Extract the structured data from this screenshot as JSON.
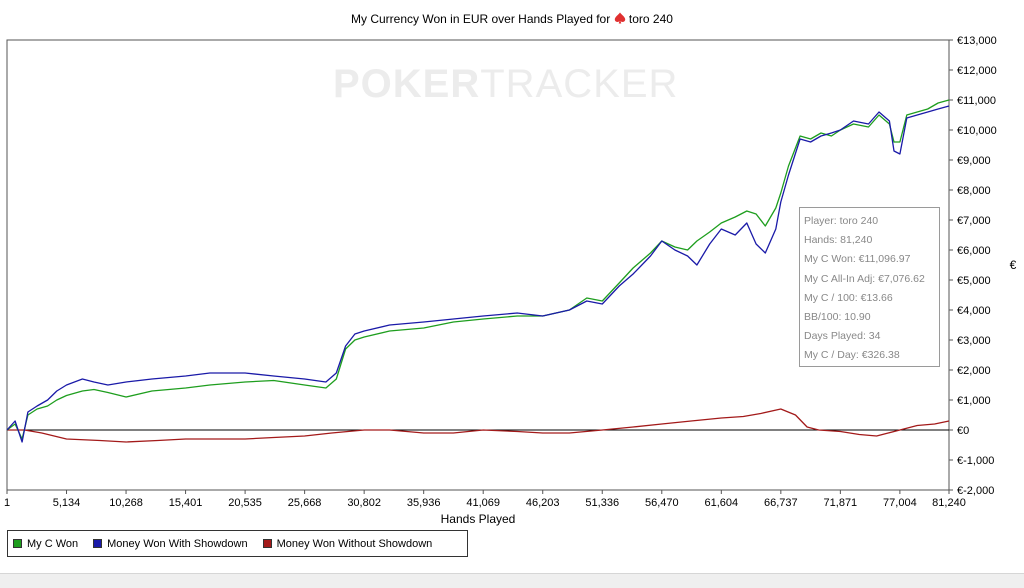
{
  "title": {
    "prefix": "My Currency Won in EUR over Hands Played for",
    "player": "toro 240"
  },
  "watermark": {
    "part1": "POKER",
    "part2": "TRACKER"
  },
  "colors": {
    "green": "#1e9e1e",
    "blue": "#1a1aa8",
    "red": "#a31a1a",
    "spade": "#e03030"
  },
  "tooltip": {
    "player": "Player: toro 240",
    "hands": "Hands: 81,240",
    "won": "My C Won: €11,096.97",
    "allin": "My C All-In Adj: €7,076.62",
    "per100": "My C / 100: €13.66",
    "bb100": "BB/100: 10.90",
    "days": "Days Played: 34",
    "perday": "My C / Day: €326.38"
  },
  "legend": {
    "items": [
      {
        "label": "My C Won",
        "color": "#1e9e1e"
      },
      {
        "label": "Money Won With Showdown",
        "color": "#1a1aa8"
      },
      {
        "label": "Money Won Without Showdown",
        "color": "#a31a1a"
      }
    ]
  },
  "chart_data": {
    "type": "line",
    "title": "My Currency Won in EUR over Hands Played for toro 240",
    "xlabel": "Hands Played",
    "ylabel": "€",
    "xlim": [
      1,
      81240
    ],
    "ylim": [
      -2000,
      13000
    ],
    "x_ticks": [
      1,
      5134,
      10268,
      15401,
      20535,
      25668,
      30802,
      35936,
      41069,
      46203,
      51336,
      56470,
      61604,
      66737,
      71871,
      77004,
      81240
    ],
    "x_tick_labels": [
      "1",
      "5,134",
      "10,268",
      "15,401",
      "20,535",
      "25,668",
      "30,802",
      "35,936",
      "41,069",
      "46,203",
      "51,336",
      "56,470",
      "61,604",
      "66,737",
      "71,871",
      "77,004",
      "81,240"
    ],
    "y_ticks": [
      -2000,
      -1000,
      0,
      1000,
      2000,
      3000,
      4000,
      5000,
      6000,
      7000,
      8000,
      9000,
      10000,
      11000,
      12000,
      13000
    ],
    "y_tick_labels": [
      "€-2,000",
      "€-1,000",
      "€0",
      "€1,000",
      "€2,000",
      "€3,000",
      "€4,000",
      "€5,000",
      "€6,000",
      "€7,000",
      "€8,000",
      "€9,000",
      "€10,000",
      "€11,000",
      "€12,000",
      "€13,000"
    ],
    "zero_line": true,
    "grid": false,
    "legend_position": "bottom-left",
    "series": [
      {
        "name": "My C Won",
        "x": [
          1,
          700,
          1300,
          1800,
          2600,
          3500,
          4300,
          5134,
          6500,
          7500,
          8700,
          10268,
          12500,
          15401,
          17500,
          20535,
          23000,
          25668,
          27500,
          28400,
          29200,
          30000,
          30802,
          33000,
          35936,
          38500,
          41069,
          44000,
          46203,
          48500,
          50000,
          51336,
          52800,
          54000,
          55500,
          56470,
          57600,
          58700,
          59500,
          60600,
          61604,
          62800,
          63800,
          64600,
          65400,
          66300,
          66737,
          67400,
          68400,
          69300,
          70200,
          71100,
          71871,
          73000,
          74300,
          75200,
          76100,
          76500,
          77004,
          77600,
          78500,
          79400,
          80300,
          81240
        ],
        "y": [
          0,
          200,
          -300,
          500,
          700,
          800,
          1000,
          1150,
          1300,
          1350,
          1250,
          1100,
          1300,
          1400,
          1500,
          1600,
          1650,
          1500,
          1400,
          1700,
          2700,
          3000,
          3100,
          3300,
          3400,
          3600,
          3700,
          3800,
          3800,
          4000,
          4400,
          4300,
          4900,
          5400,
          5900,
          6300,
          6100,
          6000,
          6300,
          6600,
          6900,
          7100,
          7300,
          7200,
          6800,
          7400,
          7900,
          8800,
          9800,
          9700,
          9900,
          9800,
          10000,
          10200,
          10100,
          10500,
          10200,
          9600,
          9600,
          10500,
          10600,
          10700,
          10900,
          11000
        ]
      },
      {
        "name": "Money Won With Showdown",
        "x": [
          1,
          700,
          1300,
          1800,
          2600,
          3500,
          4300,
          5134,
          6500,
          7500,
          8700,
          10268,
          12500,
          15401,
          17500,
          20535,
          23000,
          25668,
          27500,
          28400,
          29200,
          30000,
          30802,
          33000,
          35936,
          38500,
          41069,
          44000,
          46203,
          48500,
          50000,
          51336,
          52800,
          54000,
          55500,
          56470,
          57600,
          58700,
          59500,
          60600,
          61604,
          62800,
          63800,
          64600,
          65400,
          66300,
          66737,
          67400,
          68400,
          69300,
          70200,
          71100,
          71871,
          73000,
          74300,
          75200,
          76100,
          76500,
          77004,
          77600,
          78500,
          79400,
          80300,
          81240
        ],
        "y": [
          0,
          300,
          -400,
          600,
          800,
          1000,
          1300,
          1500,
          1700,
          1600,
          1500,
          1600,
          1700,
          1800,
          1900,
          1900,
          1800,
          1700,
          1600,
          1900,
          2800,
          3200,
          3300,
          3500,
          3600,
          3700,
          3800,
          3900,
          3800,
          4000,
          4300,
          4200,
          4800,
          5200,
          5800,
          6300,
          6000,
          5800,
          5500,
          6200,
          6700,
          6500,
          6900,
          6200,
          5900,
          6700,
          7600,
          8500,
          9700,
          9600,
          9800,
          9900,
          10000,
          10300,
          10200,
          10600,
          10300,
          9300,
          9200,
          10400,
          10500,
          10600,
          10700,
          10800
        ]
      },
      {
        "name": "Money Won Without Showdown",
        "x": [
          1,
          1500,
          3000,
          5134,
          8000,
          10268,
          13000,
          15401,
          18000,
          20535,
          23000,
          25668,
          28000,
          30802,
          33000,
          35936,
          38500,
          41069,
          44000,
          46203,
          48500,
          51336,
          54000,
          56470,
          59000,
          61604,
          63500,
          65000,
          66737,
          68000,
          69000,
          70000,
          71871,
          73500,
          75000,
          76000,
          77004,
          78500,
          80000,
          81240
        ],
        "y": [
          0,
          0,
          -100,
          -300,
          -350,
          -400,
          -350,
          -300,
          -300,
          -300,
          -250,
          -200,
          -100,
          0,
          0,
          -100,
          -100,
          0,
          -50,
          -100,
          -100,
          0,
          100,
          200,
          300,
          400,
          450,
          550,
          700,
          500,
          100,
          0,
          -50,
          -150,
          -200,
          -100,
          0,
          150,
          200,
          300
        ]
      }
    ]
  }
}
